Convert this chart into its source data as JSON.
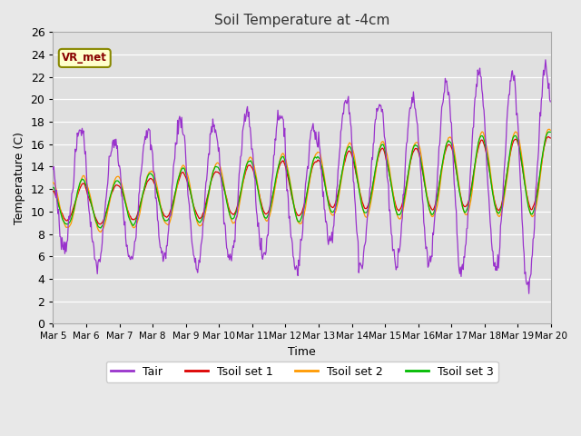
{
  "title": "Soil Temperature at -4cm",
  "xlabel": "Time",
  "ylabel": "Temperature (C)",
  "ylim": [
    0,
    26
  ],
  "line_colors": {
    "Tair": "#9933cc",
    "Tsoil1": "#dd0000",
    "Tsoil2": "#ff9900",
    "Tsoil3": "#00bb00"
  },
  "legend_labels": [
    "Tair",
    "Tsoil set 1",
    "Tsoil set 2",
    "Tsoil set 3"
  ],
  "xtick_labels": [
    "Mar 5",
    "Mar 6",
    "Mar 7",
    "Mar 8",
    "Mar 9",
    "Mar 10",
    "Mar 11",
    "Mar 12",
    "Mar 13",
    "Mar 14",
    "Mar 15",
    "Mar 16",
    "Mar 17",
    "Mar 18",
    "Mar 19",
    "Mar 20"
  ],
  "annotation_text": "VR_met",
  "annotation_color": "#880000",
  "annotation_bg": "#ffffcc",
  "annotation_edge": "#888800",
  "n_days": 15,
  "pts_per_day": 48,
  "fig_bg": "#e8e8e8",
  "plot_bg": "#e0e0e0"
}
